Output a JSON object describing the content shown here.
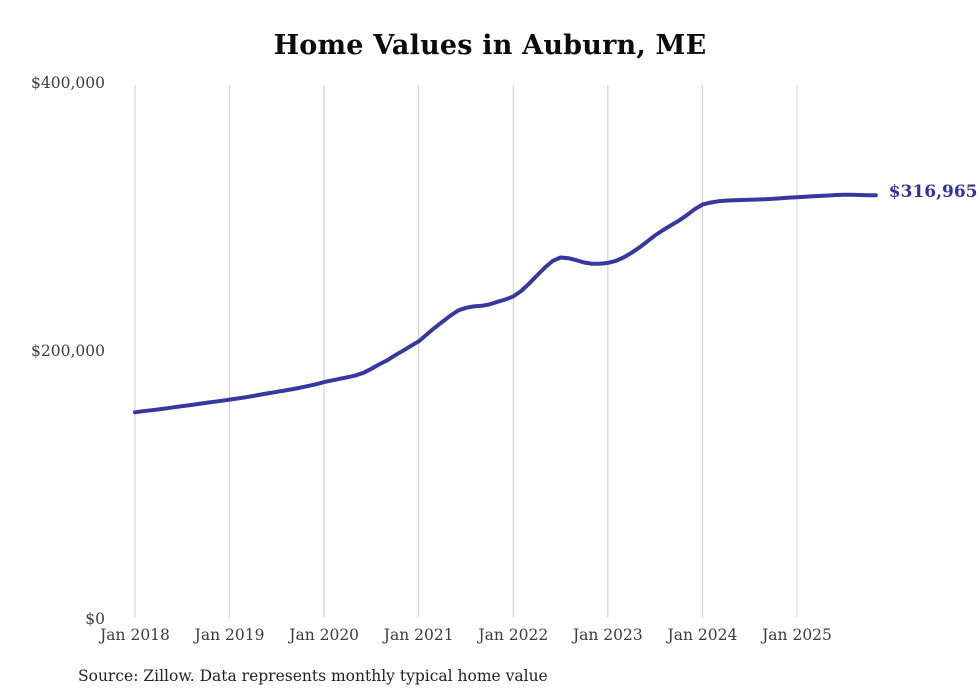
{
  "chart_data": {
    "type": "line",
    "title": "Home Values in Auburn, ME",
    "source": "Source: Zillow. Data represents monthly typical home value",
    "end_label": "$316,965",
    "final_value": 316965,
    "ylabel": "",
    "xlabel": "",
    "ylim": [
      0,
      400000
    ],
    "grid": "vertical-only",
    "legend": "none",
    "y_ticks": [
      {
        "value": 0,
        "label": "$0"
      },
      {
        "value": 200000,
        "label": "$200,000"
      },
      {
        "value": 400000,
        "label": "$400,000"
      }
    ],
    "x_tick_labels": [
      "Jan 2018",
      "Jan 2019",
      "Jan 2020",
      "Jan 2021",
      "Jan 2022",
      "Jan 2023",
      "Jan 2024",
      "Jan 2025"
    ],
    "x_monthly": [
      "2018-01",
      "2018-02",
      "2018-03",
      "2018-04",
      "2018-05",
      "2018-06",
      "2018-07",
      "2018-08",
      "2018-09",
      "2018-10",
      "2018-11",
      "2018-12",
      "2019-01",
      "2019-02",
      "2019-03",
      "2019-04",
      "2019-05",
      "2019-06",
      "2019-07",
      "2019-08",
      "2019-09",
      "2019-10",
      "2019-11",
      "2019-12",
      "2020-01",
      "2020-02",
      "2020-03",
      "2020-04",
      "2020-05",
      "2020-06",
      "2020-07",
      "2020-08",
      "2020-09",
      "2020-10",
      "2020-11",
      "2020-12",
      "2021-01",
      "2021-02",
      "2021-03",
      "2021-04",
      "2021-05",
      "2021-06",
      "2021-07",
      "2021-08",
      "2021-09",
      "2021-10",
      "2021-11",
      "2021-12",
      "2022-01",
      "2022-02",
      "2022-03",
      "2022-04",
      "2022-05",
      "2022-06",
      "2022-07",
      "2022-08",
      "2022-09",
      "2022-10",
      "2022-11",
      "2022-12",
      "2023-01",
      "2023-02",
      "2023-03",
      "2023-04",
      "2023-05",
      "2023-06",
      "2023-07",
      "2023-08",
      "2023-09",
      "2023-10",
      "2023-11",
      "2023-12",
      "2024-01",
      "2024-02",
      "2024-03",
      "2024-04",
      "2024-05",
      "2024-06",
      "2024-07",
      "2024-08",
      "2024-09",
      "2024-10",
      "2024-11",
      "2024-12",
      "2025-01",
      "2025-02",
      "2025-03",
      "2025-04",
      "2025-05",
      "2025-06",
      "2025-07",
      "2025-08",
      "2025-09",
      "2025-10",
      "2025-11"
    ],
    "values": [
      155000,
      155800,
      156500,
      157200,
      158000,
      158800,
      159600,
      160400,
      161200,
      162000,
      162800,
      163600,
      164500,
      165300,
      166200,
      167200,
      168300,
      169300,
      170300,
      171300,
      172300,
      173400,
      174700,
      176000,
      177500,
      178800,
      180000,
      181200,
      182500,
      184500,
      187500,
      190800,
      193800,
      197500,
      201000,
      204500,
      208000,
      213000,
      218000,
      222500,
      227000,
      231000,
      233000,
      234000,
      234500,
      235500,
      237500,
      239200,
      241500,
      245500,
      251000,
      257000,
      263000,
      268000,
      270500,
      270000,
      268500,
      266800,
      265800,
      265900,
      266500,
      268000,
      270500,
      274000,
      278000,
      282500,
      287000,
      291000,
      294500,
      298000,
      302000,
      306500,
      310000,
      311500,
      312500,
      313000,
      313200,
      313400,
      313600,
      313800,
      314000,
      314300,
      314800,
      315200,
      315500,
      315800,
      316200,
      316500,
      316800,
      317200,
      317400,
      317300,
      317200,
      317050,
      316965
    ],
    "line_color": "#37379f",
    "end_label_color": "#32329b",
    "grid_color": "#cccccc",
    "axis_text_color": "#3c3c3c",
    "title_color": "#0b0b0b",
    "source_text_color": "#222222"
  }
}
